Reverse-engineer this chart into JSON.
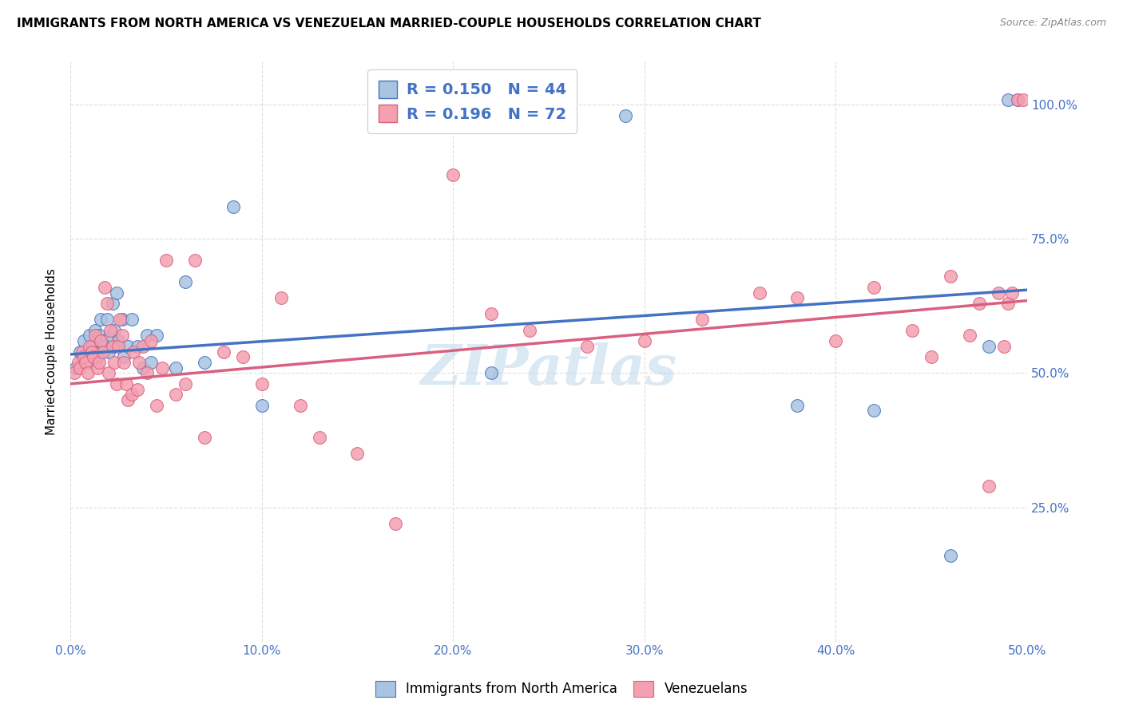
{
  "title": "IMMIGRANTS FROM NORTH AMERICA VS VENEZUELAN MARRIED-COUPLE HOUSEHOLDS CORRELATION CHART",
  "source": "Source: ZipAtlas.com",
  "ylabel": "Married-couple Households",
  "yticks": [
    "25.0%",
    "50.0%",
    "75.0%",
    "100.0%"
  ],
  "ytick_vals": [
    0.25,
    0.5,
    0.75,
    1.0
  ],
  "xticks": [
    "0.0%",
    "10.0%",
    "20.0%",
    "30.0%",
    "40.0%",
    "50.0%"
  ],
  "xtick_vals": [
    0.0,
    0.1,
    0.2,
    0.3,
    0.4,
    0.5
  ],
  "xlim": [
    0.0,
    0.5
  ],
  "ylim": [
    0.0,
    1.08
  ],
  "color_blue": "#a8c4e0",
  "color_pink": "#f4a0b0",
  "line_blue": "#4472c4",
  "line_pink": "#d96080",
  "watermark": "ZIPatlas",
  "blue_scatter_x": [
    0.003,
    0.005,
    0.006,
    0.007,
    0.008,
    0.009,
    0.01,
    0.011,
    0.012,
    0.013,
    0.014,
    0.015,
    0.016,
    0.017,
    0.018,
    0.019,
    0.02,
    0.021,
    0.022,
    0.023,
    0.024,
    0.025,
    0.027,
    0.028,
    0.03,
    0.032,
    0.035,
    0.038,
    0.04,
    0.042,
    0.045,
    0.055,
    0.06,
    0.07,
    0.085,
    0.1,
    0.22,
    0.29,
    0.38,
    0.42,
    0.46,
    0.48,
    0.49,
    0.495
  ],
  "blue_scatter_y": [
    0.51,
    0.54,
    0.53,
    0.56,
    0.53,
    0.52,
    0.57,
    0.55,
    0.54,
    0.58,
    0.53,
    0.57,
    0.6,
    0.56,
    0.55,
    0.6,
    0.54,
    0.57,
    0.63,
    0.58,
    0.65,
    0.56,
    0.6,
    0.53,
    0.55,
    0.6,
    0.55,
    0.51,
    0.57,
    0.52,
    0.57,
    0.51,
    0.67,
    0.52,
    0.81,
    0.44,
    0.5,
    0.98,
    0.44,
    0.43,
    0.16,
    0.55,
    1.01,
    1.01
  ],
  "pink_scatter_x": [
    0.002,
    0.004,
    0.005,
    0.006,
    0.007,
    0.008,
    0.009,
    0.01,
    0.011,
    0.012,
    0.013,
    0.014,
    0.015,
    0.016,
    0.017,
    0.018,
    0.019,
    0.02,
    0.021,
    0.022,
    0.023,
    0.024,
    0.025,
    0.026,
    0.027,
    0.028,
    0.029,
    0.03,
    0.032,
    0.033,
    0.035,
    0.036,
    0.038,
    0.04,
    0.042,
    0.045,
    0.048,
    0.05,
    0.055,
    0.06,
    0.065,
    0.07,
    0.08,
    0.09,
    0.1,
    0.11,
    0.12,
    0.13,
    0.15,
    0.17,
    0.2,
    0.22,
    0.24,
    0.27,
    0.3,
    0.33,
    0.36,
    0.38,
    0.4,
    0.42,
    0.44,
    0.45,
    0.46,
    0.47,
    0.475,
    0.48,
    0.485,
    0.488,
    0.49,
    0.492,
    0.495,
    0.498
  ],
  "pink_scatter_y": [
    0.5,
    0.52,
    0.51,
    0.54,
    0.53,
    0.52,
    0.5,
    0.55,
    0.54,
    0.53,
    0.57,
    0.51,
    0.52,
    0.56,
    0.54,
    0.66,
    0.63,
    0.5,
    0.58,
    0.55,
    0.52,
    0.48,
    0.55,
    0.6,
    0.57,
    0.52,
    0.48,
    0.45,
    0.46,
    0.54,
    0.47,
    0.52,
    0.55,
    0.5,
    0.56,
    0.44,
    0.51,
    0.71,
    0.46,
    0.48,
    0.71,
    0.38,
    0.54,
    0.53,
    0.48,
    0.64,
    0.44,
    0.38,
    0.35,
    0.22,
    0.87,
    0.61,
    0.58,
    0.55,
    0.56,
    0.6,
    0.65,
    0.64,
    0.56,
    0.66,
    0.58,
    0.53,
    0.68,
    0.57,
    0.63,
    0.29,
    0.65,
    0.55,
    0.63,
    0.65,
    1.01,
    1.01
  ]
}
